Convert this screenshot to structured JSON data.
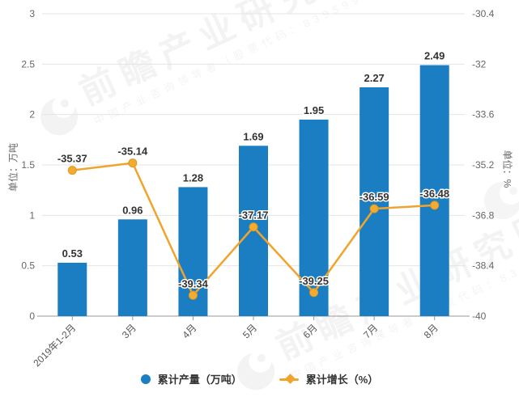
{
  "watermark": {
    "brand": "前瞻产业研究院",
    "subtitle": "中国产业咨询领导者（股票代码：839599）"
  },
  "chart_data": {
    "type": "bar",
    "title": "",
    "categories": [
      "2019年1-2月",
      "3月",
      "4月",
      "5月",
      "6月",
      "7月",
      "8月"
    ],
    "series": [
      {
        "name": "累计产量（万吨）",
        "type": "bar",
        "axis": "left",
        "color": "#1b7ec2",
        "values": [
          0.53,
          0.96,
          1.28,
          1.69,
          1.95,
          2.27,
          2.49
        ],
        "labels": [
          "0.53",
          "0.96",
          "1.28",
          "1.69",
          "1.95",
          "2.27",
          "2.49"
        ]
      },
      {
        "name": "累计增长（%）",
        "type": "line",
        "axis": "right",
        "color": "#f0a42c",
        "marker_color": "#f3ab31",
        "marker_stroke": "#dd9a1e",
        "values": [
          -35.37,
          -35.14,
          -39.34,
          -37.17,
          -39.25,
          -36.59,
          -36.48
        ],
        "labels": [
          "-35.37",
          "-35.14",
          "-39.34",
          "-37.17",
          "-39.25",
          "-36.59",
          "-36.48"
        ]
      }
    ],
    "left_axis": {
      "name": "单位：万吨",
      "min": 0,
      "max": 3,
      "step": 0.5,
      "ticks": [
        "3",
        "2.5",
        "2",
        "1.5",
        "1",
        "0.5",
        "0"
      ]
    },
    "right_axis": {
      "name": "单位：%",
      "min": -40,
      "max": -30.4,
      "step": 1.6,
      "ticks": [
        "-30.4",
        "-32",
        "-33.6",
        "-35.2",
        "-36.8",
        "-38.4",
        "-40"
      ]
    },
    "grid": true,
    "legend_position": "bottom",
    "colors": {
      "grid_line": "#e4e4e4",
      "axis_line": "#999999",
      "tick_text": "#666666",
      "value_label": "#333333"
    }
  }
}
